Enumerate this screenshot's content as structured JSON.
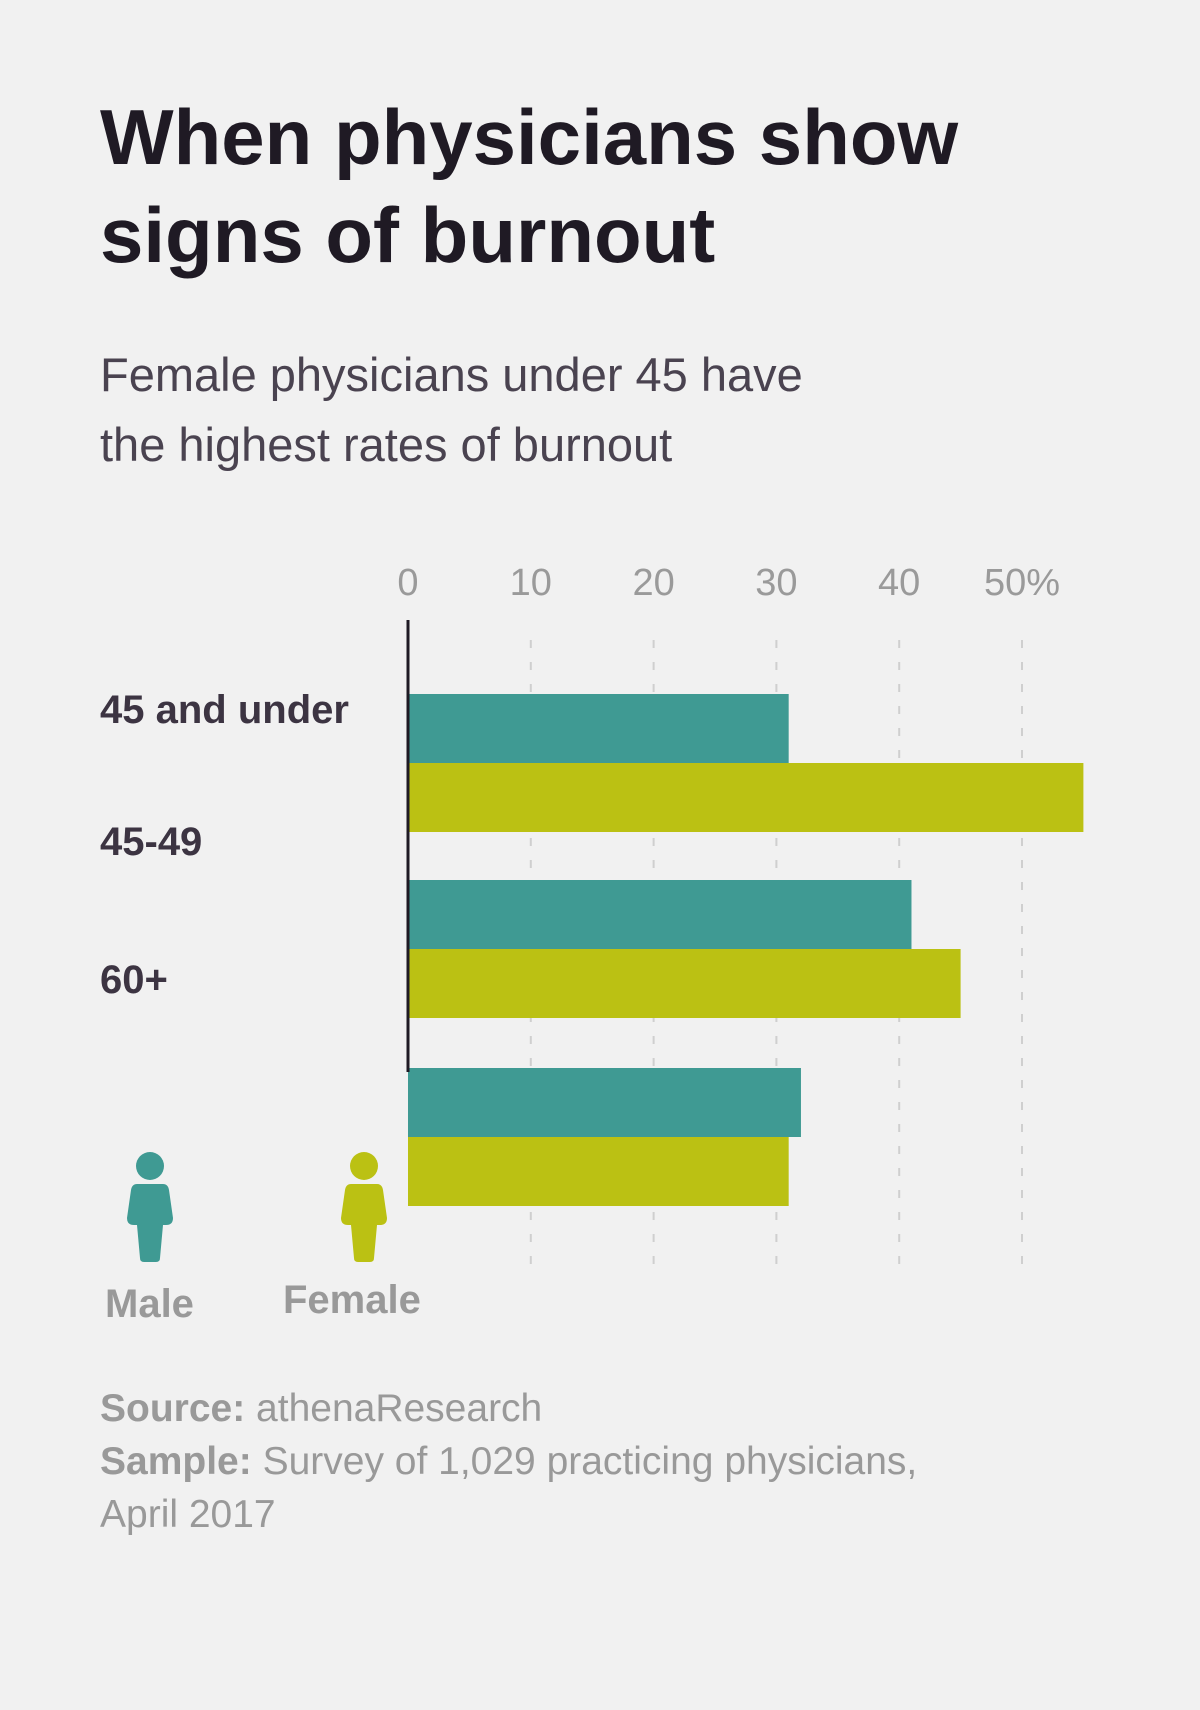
{
  "title_line1": "When physicians show",
  "title_line2": "signs of burnout",
  "subtitle_line1": "Female physicians under 45 have",
  "subtitle_line2": "the highest rates of burnout",
  "colors": {
    "male": "#3f9a93",
    "female": "#bbc113",
    "background": "#f1f1f1"
  },
  "chart_data": {
    "type": "bar",
    "orientation": "horizontal",
    "categories": [
      "45 and under",
      "45-49",
      "60+"
    ],
    "series": [
      {
        "name": "Male",
        "values": [
          31,
          41,
          32
        ]
      },
      {
        "name": "Female",
        "values": [
          55,
          45,
          31
        ]
      }
    ],
    "xlim": [
      0,
      50
    ],
    "x_ticks": [
      0,
      10,
      20,
      30,
      40,
      50
    ],
    "x_tick_labels": [
      "0",
      "10",
      "20",
      "30",
      "40",
      "50%"
    ],
    "grid": true,
    "legend": {
      "placement": "bottom-left",
      "entries": [
        "Male",
        "Female"
      ],
      "icon": "person-icon"
    }
  },
  "footer": {
    "source_label": "Source:",
    "source_value": "athenaResearch",
    "sample_label": "Sample:",
    "sample_value": "Survey of 1,029 practicing physicians,",
    "sample_value_line2": "April 2017"
  }
}
